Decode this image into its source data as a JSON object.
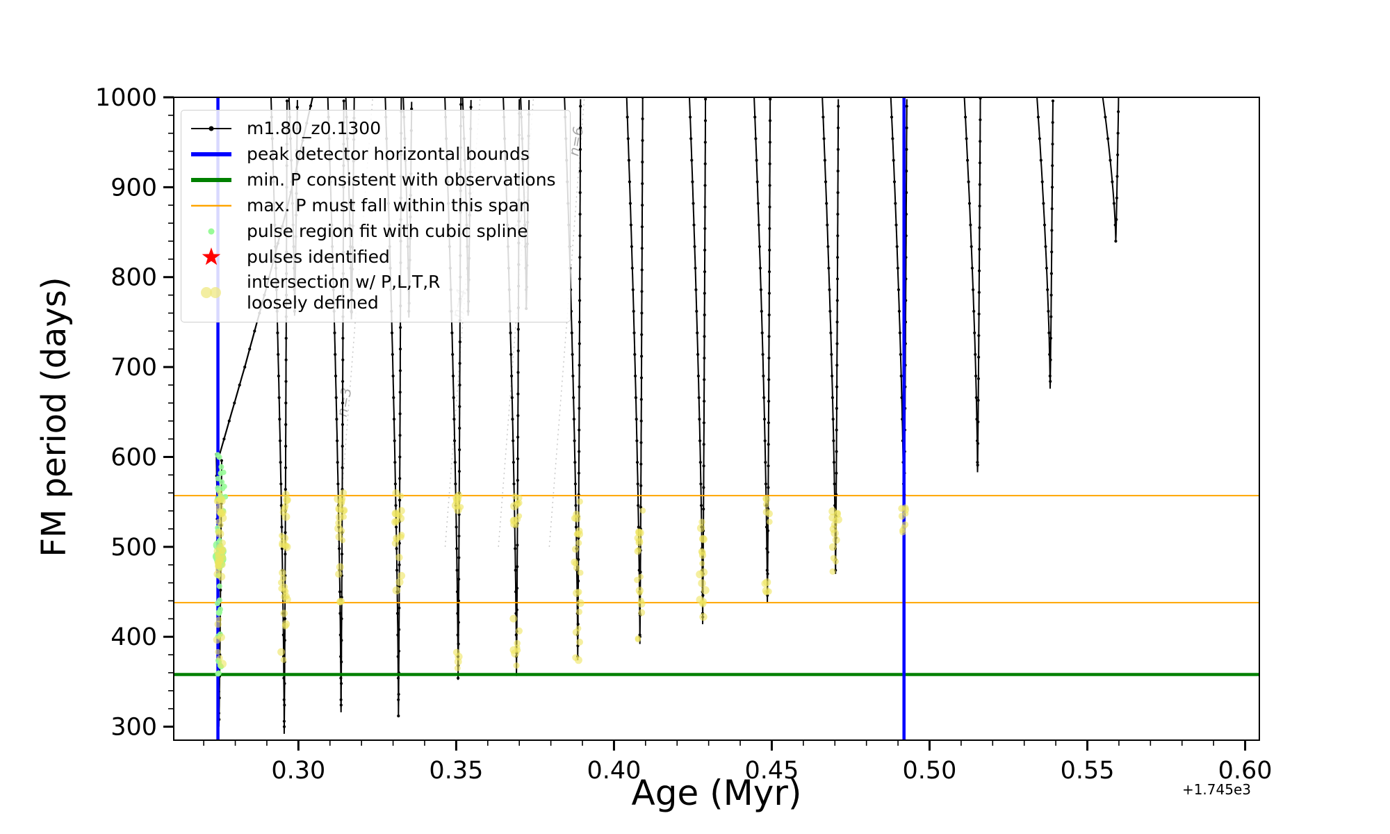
{
  "figure": {
    "background": "#ffffff"
  },
  "chart_data": {
    "type": "line",
    "title": "",
    "xlabel": "Age (Myr)",
    "ylabel": "FM period (days)",
    "x_offset_label": "+1.745e3",
    "xlim": [
      0.2605,
      0.6045
    ],
    "ylim": [
      285,
      1000
    ],
    "xticks": [
      0.3,
      0.35,
      0.4,
      0.45,
      0.5,
      0.55,
      0.6
    ],
    "xtick_labels": [
      "0.30",
      "0.35",
      "0.40",
      "0.45",
      "0.50",
      "0.55",
      "0.60"
    ],
    "yticks": [
      300,
      400,
      500,
      600,
      700,
      800,
      900,
      1000
    ],
    "ytick_labels": [
      "300",
      "400",
      "500",
      "600",
      "700",
      "800",
      "900",
      "1000"
    ],
    "grid": false,
    "legend_position": "upper-left",
    "colors": {
      "track": "#000000",
      "peak_bounds": "#0000ff",
      "min_period": "#008000",
      "max_span": "#ffa500",
      "spline_fit": "#98fb98",
      "pulses": "#ff0000",
      "intersection": "#efe45f",
      "intersection_legend": "#efe882",
      "overtone": "#c8c8c8",
      "overtone_label": "#a8a8a8"
    },
    "legend": [
      {
        "label": "m1.80_z0.1300",
        "color": "#000000"
      },
      {
        "label": "peak detector horizontal bounds",
        "color": "#0000ff"
      },
      {
        "label": "min. P consistent with observations",
        "color": "#008000"
      },
      {
        "label": "max. P must fall within this span",
        "color": "#ffa500"
      },
      {
        "label": "pulse region fit with cubic spline",
        "color": "#98fb98"
      },
      {
        "label": "pulses identified",
        "color": "#ff0000"
      },
      {
        "label": "intersection w/ P,L,T,R",
        "label2": "loosely defined",
        "color": "#efe882"
      }
    ],
    "vertical_lines": {
      "x": [
        0.2745,
        0.4919
      ],
      "width": 4.5
    },
    "horizontal_lines": [
      {
        "name": "min-period-line",
        "y": 358,
        "color": "#008000",
        "width": 4.5
      },
      {
        "name": "max-period-span-upper",
        "y": 557,
        "color": "#ffa500",
        "width": 2
      },
      {
        "name": "max-period-span-lower",
        "y": 438,
        "color": "#ffa500",
        "width": 2
      }
    ],
    "rising_track": {
      "points": [
        [
          0.2748,
          600
        ],
        [
          0.283,
          700
        ],
        [
          0.29,
          790
        ],
        [
          0.297,
          885
        ],
        [
          0.3045,
          1000
        ]
      ]
    },
    "pulse_spikes": [
      {
        "x": 0.2748,
        "min": 300,
        "top": 603,
        "w": 0.0008
      },
      {
        "x": 0.2955,
        "min": 292
      },
      {
        "x": 0.2988,
        "min": 757,
        "w": 0.0018
      },
      {
        "x": 0.3135,
        "min": 316
      },
      {
        "x": 0.3168,
        "min": 753,
        "w": 0.0018
      },
      {
        "x": 0.3317,
        "min": 312
      },
      {
        "x": 0.335,
        "min": 755,
        "w": 0.0018
      },
      {
        "x": 0.3506,
        "min": 352
      },
      {
        "x": 0.3538,
        "min": 757,
        "w": 0.0018
      },
      {
        "x": 0.3691,
        "min": 358
      },
      {
        "x": 0.3722,
        "min": 765,
        "w": 0.0018
      },
      {
        "x": 0.3885,
        "min": 374
      },
      {
        "x": 0.4082,
        "min": 392
      },
      {
        "x": 0.4281,
        "min": 414
      },
      {
        "x": 0.4486,
        "min": 438
      },
      {
        "x": 0.4702,
        "min": 470
      },
      {
        "x": 0.4919,
        "min": 518
      },
      {
        "x": 0.5152,
        "min": 583
      },
      {
        "x": 0.5382,
        "min": 676
      },
      {
        "x": 0.559,
        "min": 840
      }
    ],
    "overtone_slope": 45000,
    "overtone_lines": [
      {
        "label": "n=3",
        "x": 0.316,
        "y": 660
      },
      {
        "label": "n=4",
        "x": 0.3525,
        "y": 770
      },
      {
        "label": "n=5",
        "x": 0.3715,
        "y": 865
      },
      {
        "label": "n=6",
        "x": 0.3895,
        "y": 950
      }
    ],
    "green_scatter": {
      "clusters": [
        {
          "x": 0.2749,
          "ymin": 352,
          "ymax": 603,
          "count": 36,
          "jx": 0.0012,
          "r": 4
        },
        {
          "x": 0.276,
          "ymin": 540,
          "ymax": 603,
          "count": 8,
          "jx": 0.002,
          "r": 4
        },
        {
          "x": 0.2751,
          "ymin": 480,
          "ymax": 502,
          "count": 10,
          "jx": 0.0015,
          "r": 7
        }
      ]
    },
    "yellow_scatter": {
      "clusters": [
        {
          "x": 0.2752,
          "ymin": 455,
          "ymax": 562,
          "count": 26
        },
        {
          "x": 0.2752,
          "ymin": 360,
          "ymax": 450,
          "count": 7
        },
        {
          "x": 0.2752,
          "ymin": 482,
          "ymax": 500,
          "count": 8
        },
        {
          "x": 0.2955,
          "ymin": 440,
          "ymax": 560,
          "count": 24
        },
        {
          "x": 0.2955,
          "ymin": 372,
          "ymax": 430,
          "count": 5
        },
        {
          "x": 0.3135,
          "ymin": 505,
          "ymax": 560,
          "count": 16
        },
        {
          "x": 0.3135,
          "ymin": 428,
          "ymax": 500,
          "count": 5
        },
        {
          "x": 0.3317,
          "ymin": 502,
          "ymax": 560,
          "count": 16
        },
        {
          "x": 0.3317,
          "ymin": 440,
          "ymax": 498,
          "count": 4
        },
        {
          "x": 0.3506,
          "ymin": 538,
          "ymax": 560,
          "count": 8
        },
        {
          "x": 0.3506,
          "ymin": 365,
          "ymax": 385,
          "count": 4
        },
        {
          "x": 0.3691,
          "ymin": 524,
          "ymax": 558,
          "count": 12
        },
        {
          "x": 0.3691,
          "ymin": 358,
          "ymax": 425,
          "count": 8
        },
        {
          "x": 0.3885,
          "ymin": 460,
          "ymax": 558,
          "count": 14
        },
        {
          "x": 0.3885,
          "ymin": 374,
          "ymax": 455,
          "count": 9
        },
        {
          "x": 0.4082,
          "ymin": 488,
          "ymax": 556,
          "count": 9
        },
        {
          "x": 0.4082,
          "ymin": 392,
          "ymax": 485,
          "count": 9
        },
        {
          "x": 0.4281,
          "ymin": 480,
          "ymax": 552,
          "count": 8
        },
        {
          "x": 0.4281,
          "ymin": 413,
          "ymax": 478,
          "count": 9
        },
        {
          "x": 0.4486,
          "ymin": 438,
          "ymax": 560,
          "count": 11
        },
        {
          "x": 0.4702,
          "ymin": 468,
          "ymax": 545,
          "count": 14
        },
        {
          "x": 0.4919,
          "ymin": 516,
          "ymax": 546,
          "count": 9
        }
      ]
    }
  }
}
